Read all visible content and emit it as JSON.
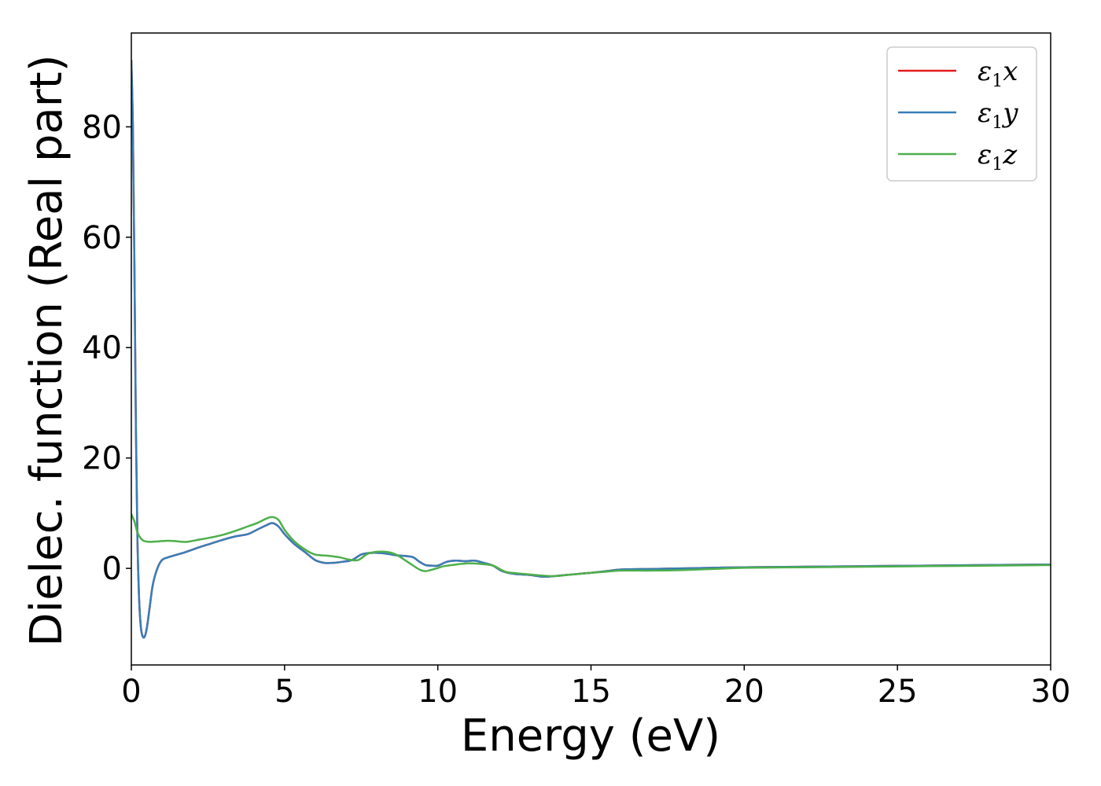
{
  "chart_data": {
    "type": "line",
    "xlabel": "Energy (eV)",
    "ylabel": "Dielec. function (Real part)",
    "xlim": [
      0,
      30
    ],
    "ylim": [
      -17.5,
      97
    ],
    "xticks": [
      0,
      5,
      10,
      15,
      20,
      25,
      30
    ],
    "yticks": [
      0,
      20,
      40,
      60,
      80
    ],
    "grid": false,
    "legend_position": "top-right",
    "series": [
      {
        "name": "ε1x",
        "symbol": "ε",
        "sub": "1",
        "axis": "x",
        "color": "#e41a1c",
        "x": [
          0,
          0.05,
          0.1,
          0.15,
          0.2,
          0.25,
          0.3,
          0.35,
          0.42,
          0.5,
          0.6,
          0.7,
          0.85,
          1.0,
          1.2,
          1.5,
          1.8,
          2.2,
          2.6,
          3.0,
          3.4,
          3.8,
          4.1,
          4.4,
          4.6,
          4.8,
          5.0,
          5.3,
          5.7,
          6.0,
          6.3,
          6.6,
          6.9,
          7.2,
          7.5,
          7.8,
          8.1,
          8.4,
          8.6,
          8.8,
          9.0,
          9.2,
          9.4,
          9.6,
          9.8,
          10.0,
          10.3,
          10.6,
          10.9,
          11.2,
          11.5,
          11.8,
          12.1,
          12.5,
          13.0,
          13.4,
          13.8,
          14.2,
          14.6,
          15.0,
          15.5,
          16.0,
          17.0,
          18.0,
          19.0,
          20.0,
          22.0,
          24.0,
          26.0,
          28.0,
          30.0
        ],
        "y": [
          92,
          80,
          55,
          25,
          5,
          -5,
          -10,
          -12,
          -12.5,
          -11,
          -7,
          -3,
          0,
          1.5,
          2,
          2.5,
          3,
          3.8,
          4.5,
          5.2,
          5.8,
          6.2,
          7,
          7.8,
          8.2,
          7.6,
          6.2,
          4.5,
          2.8,
          1.5,
          1.0,
          1.0,
          1.2,
          1.5,
          2.5,
          2.8,
          2.8,
          2.6,
          2.4,
          2.3,
          2.2,
          2.0,
          1.2,
          0.6,
          0.5,
          0.5,
          1.2,
          1.4,
          1.3,
          1.4,
          1.0,
          0.5,
          -0.5,
          -1.0,
          -1.2,
          -1.5,
          -1.4,
          -1.2,
          -1.0,
          -0.8,
          -0.5,
          -0.2,
          -0.1,
          0.0,
          0.1,
          0.2,
          0.3,
          0.4,
          0.5,
          0.6,
          0.7
        ]
      },
      {
        "name": "ε1y",
        "symbol": "ε",
        "sub": "1",
        "axis": "y",
        "color": "#377eb8",
        "x": [
          0,
          0.05,
          0.1,
          0.15,
          0.2,
          0.25,
          0.3,
          0.35,
          0.42,
          0.5,
          0.6,
          0.7,
          0.85,
          1.0,
          1.2,
          1.5,
          1.8,
          2.2,
          2.6,
          3.0,
          3.4,
          3.8,
          4.1,
          4.4,
          4.6,
          4.8,
          5.0,
          5.3,
          5.7,
          6.0,
          6.3,
          6.6,
          6.9,
          7.2,
          7.5,
          7.8,
          8.1,
          8.4,
          8.6,
          8.8,
          9.0,
          9.2,
          9.4,
          9.6,
          9.8,
          10.0,
          10.3,
          10.6,
          10.9,
          11.2,
          11.5,
          11.8,
          12.1,
          12.5,
          13.0,
          13.4,
          13.8,
          14.2,
          14.6,
          15.0,
          15.5,
          16.0,
          17.0,
          18.0,
          19.0,
          20.0,
          22.0,
          24.0,
          26.0,
          28.0,
          30.0
        ],
        "y": [
          92,
          80,
          55,
          25,
          5,
          -5,
          -10,
          -12,
          -12.5,
          -11,
          -7,
          -3,
          0,
          1.5,
          2,
          2.5,
          3,
          3.8,
          4.5,
          5.2,
          5.8,
          6.2,
          7,
          7.8,
          8.2,
          7.6,
          6.2,
          4.5,
          2.8,
          1.5,
          1.0,
          1.0,
          1.2,
          1.5,
          2.5,
          2.8,
          2.8,
          2.6,
          2.4,
          2.3,
          2.2,
          2.0,
          1.2,
          0.6,
          0.5,
          0.5,
          1.2,
          1.4,
          1.3,
          1.4,
          1.0,
          0.5,
          -0.5,
          -1.0,
          -1.2,
          -1.5,
          -1.4,
          -1.2,
          -1.0,
          -0.8,
          -0.5,
          -0.2,
          -0.1,
          0.0,
          0.1,
          0.2,
          0.3,
          0.4,
          0.5,
          0.6,
          0.7
        ]
      },
      {
        "name": "ε1z",
        "symbol": "ε",
        "sub": "1",
        "axis": "z",
        "color": "#4daf4a",
        "x": [
          0,
          0.1,
          0.2,
          0.3,
          0.4,
          0.6,
          0.9,
          1.2,
          1.5,
          1.8,
          2.2,
          2.6,
          3.0,
          3.4,
          3.8,
          4.1,
          4.4,
          4.6,
          4.8,
          5.0,
          5.3,
          5.7,
          6.0,
          6.4,
          6.8,
          7.1,
          7.4,
          7.7,
          8.0,
          8.3,
          8.6,
          8.9,
          9.2,
          9.4,
          9.6,
          9.9,
          10.2,
          10.6,
          11.0,
          11.4,
          11.8,
          12.2,
          12.6,
          13.0,
          13.4,
          13.8,
          14.2,
          14.6,
          15.0,
          15.5,
          16.0,
          17.0,
          18.0,
          19.0,
          20.0,
          22.0,
          24.0,
          26.0,
          28.0,
          30.0
        ],
        "y": [
          9.8,
          8.5,
          6.5,
          5.5,
          5.0,
          4.8,
          4.9,
          5.0,
          4.9,
          4.8,
          5.2,
          5.6,
          6.1,
          6.8,
          7.6,
          8.2,
          9.0,
          9.3,
          8.8,
          7.0,
          5.0,
          3.3,
          2.5,
          2.3,
          2.0,
          1.6,
          1.5,
          2.6,
          3.0,
          3.0,
          2.6,
          1.6,
          0.5,
          -0.2,
          -0.5,
          -0.1,
          0.4,
          0.7,
          0.9,
          0.8,
          0.5,
          -0.6,
          -0.9,
          -1.1,
          -1.3,
          -1.4,
          -1.2,
          -1.0,
          -0.8,
          -0.6,
          -0.4,
          -0.4,
          -0.3,
          -0.1,
          0.1,
          0.2,
          0.3,
          0.4,
          0.5,
          0.6
        ]
      }
    ]
  }
}
